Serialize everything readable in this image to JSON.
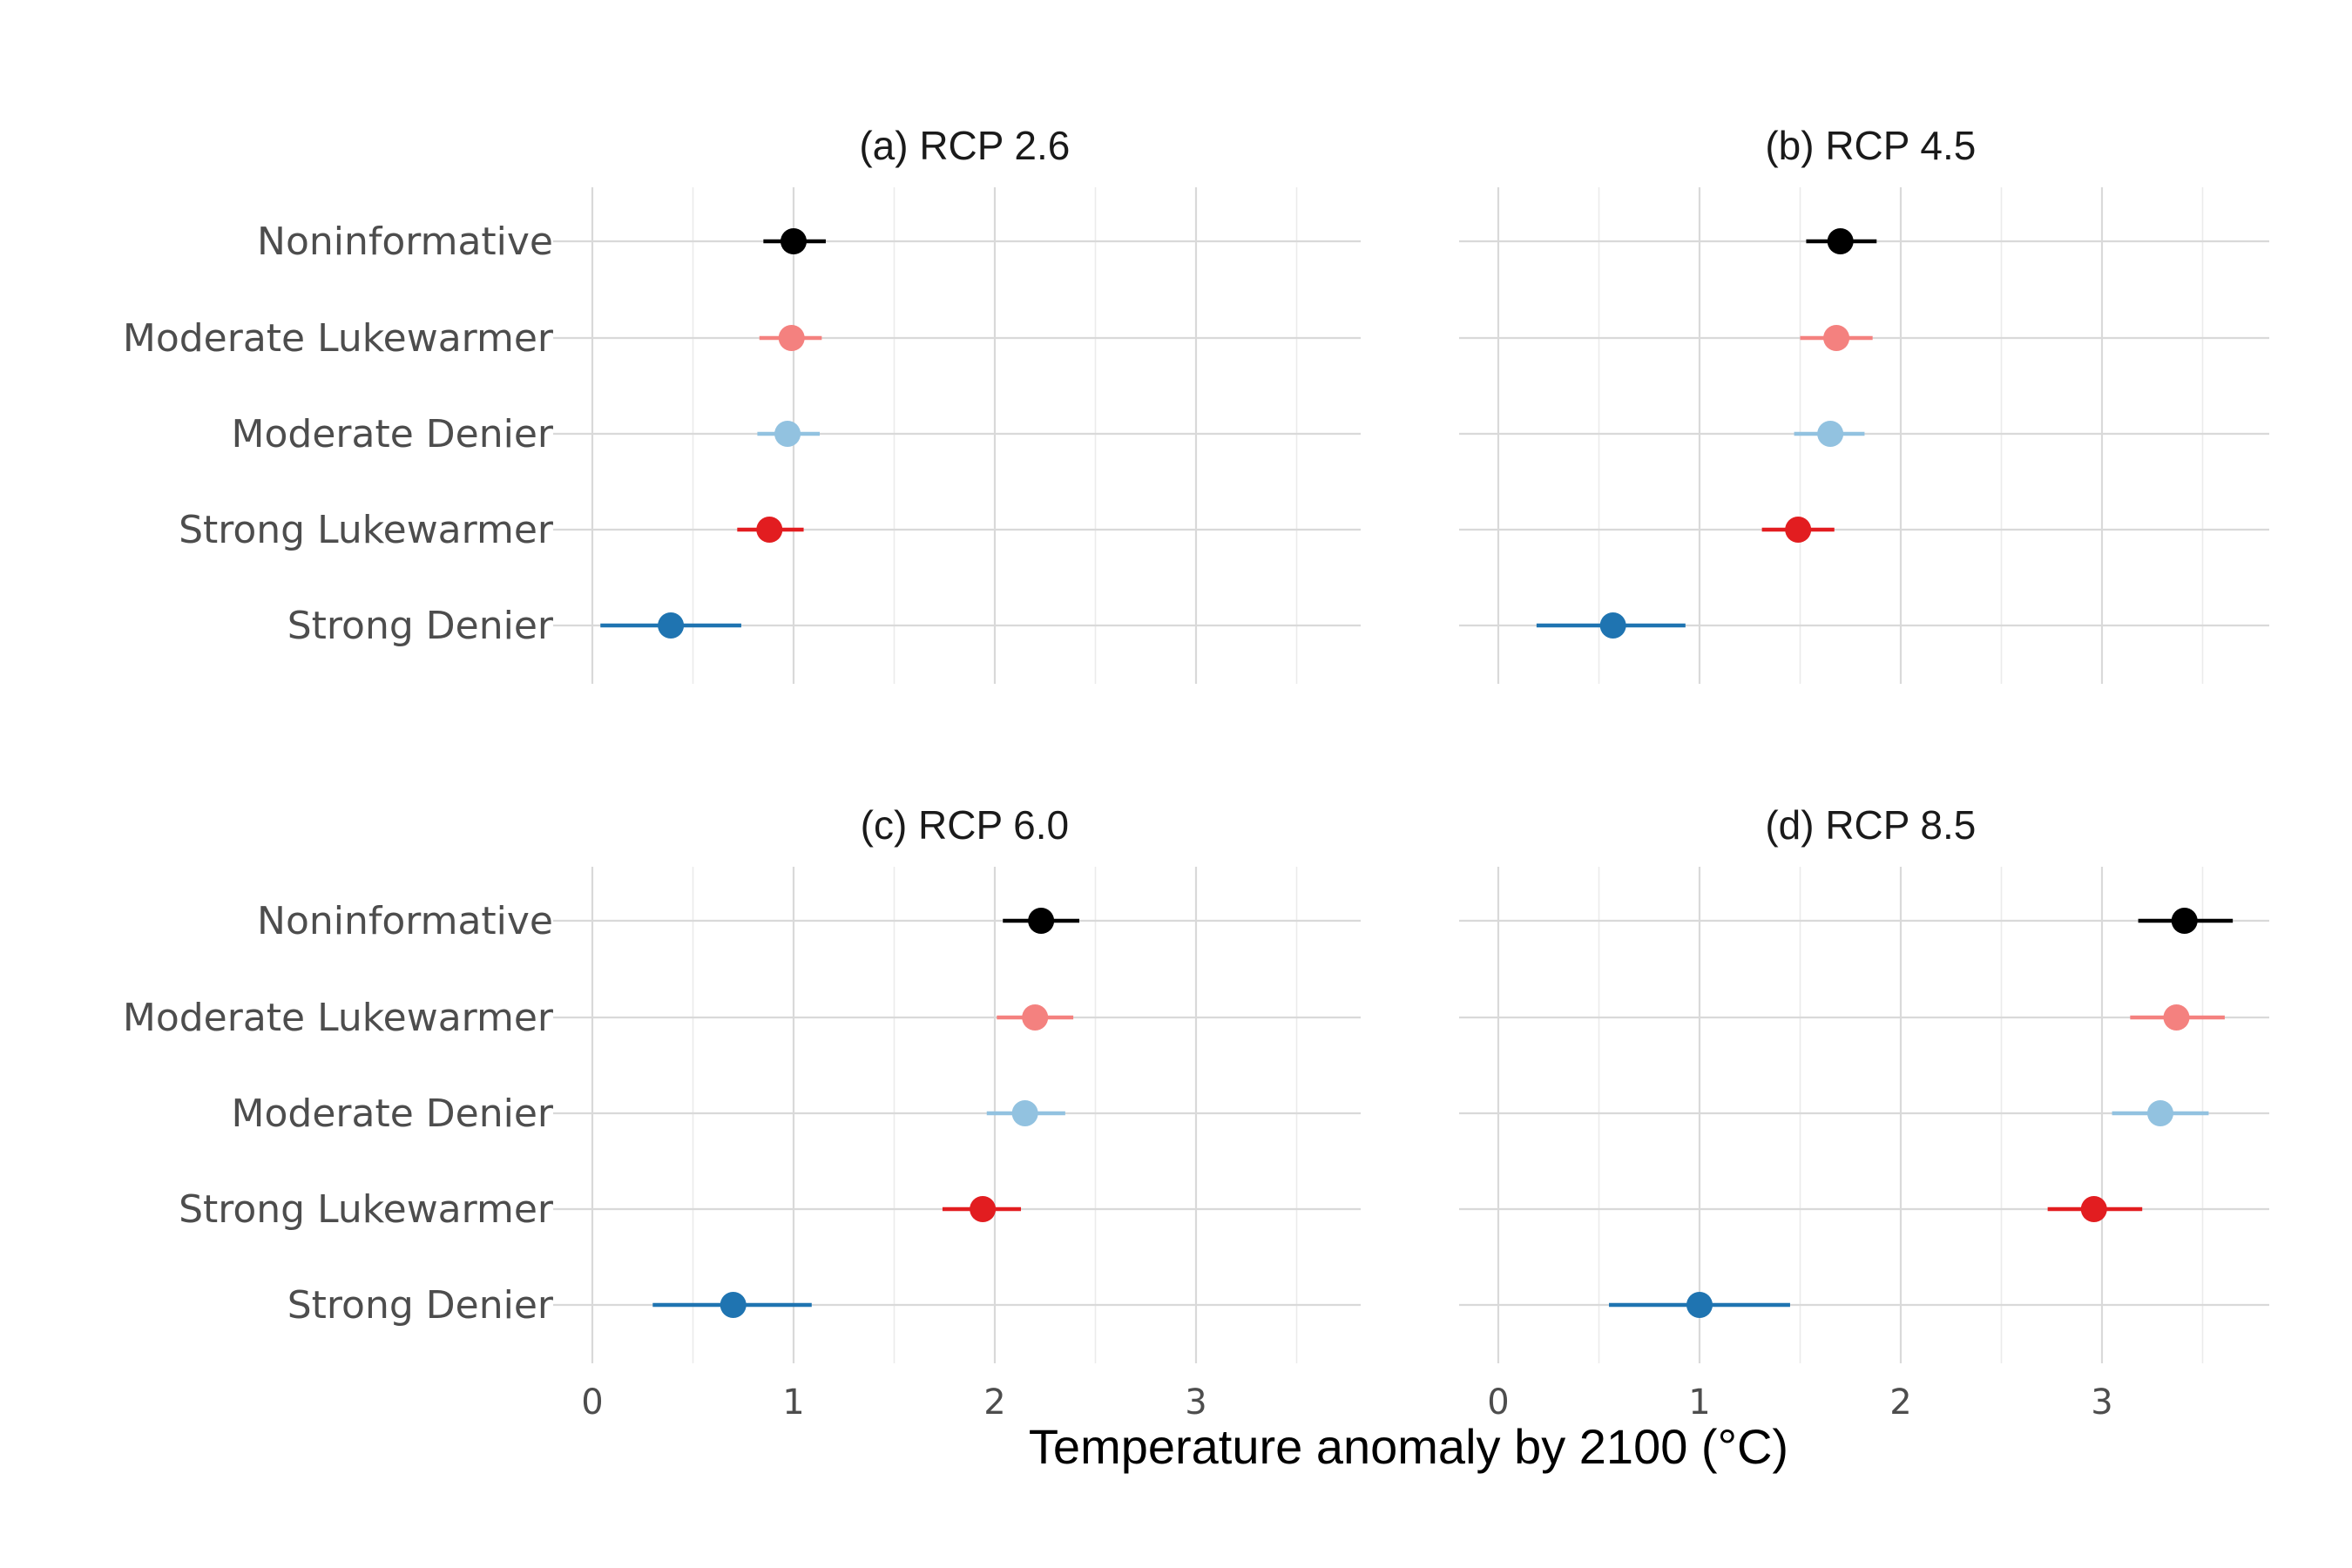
{
  "chart_data": {
    "type": "forest",
    "xlabel": "Temperature anomaly by 2100 (°C)",
    "xlim": [
      -0.1,
      3.85
    ],
    "x_ticks": [
      0,
      1,
      2,
      3
    ],
    "x_tick_labels": [
      "0",
      "1",
      "2",
      "3"
    ],
    "grid": true,
    "categories": [
      "Noninformative",
      "Moderate Lukewarmer",
      "Moderate Denier",
      "Strong Lukewarmer",
      "Strong Denier"
    ],
    "colors": {
      "Noninformative": "#000000",
      "Moderate Lukewarmer": "#f4817f",
      "Moderate Denier": "#92c2e0",
      "Strong Lukewarmer": "#e21d20",
      "Strong Denier": "#1f74b1"
    },
    "panels": [
      {
        "title": "(a) RCP 2.6",
        "points": [
          {
            "category": "Noninformative",
            "estimate": 1.0,
            "low": 0.85,
            "high": 1.16
          },
          {
            "category": "Moderate Lukewarmer",
            "estimate": 0.99,
            "low": 0.83,
            "high": 1.14
          },
          {
            "category": "Moderate Denier",
            "estimate": 0.97,
            "low": 0.82,
            "high": 1.13
          },
          {
            "category": "Strong Lukewarmer",
            "estimate": 0.88,
            "low": 0.72,
            "high": 1.05
          },
          {
            "category": "Strong Denier",
            "estimate": 0.39,
            "low": 0.04,
            "high": 0.74
          }
        ]
      },
      {
        "title": "(b) RCP 4.5",
        "points": [
          {
            "category": "Noninformative",
            "estimate": 1.7,
            "low": 1.53,
            "high": 1.88
          },
          {
            "category": "Moderate Lukewarmer",
            "estimate": 1.68,
            "low": 1.5,
            "high": 1.86
          },
          {
            "category": "Moderate Denier",
            "estimate": 1.65,
            "low": 1.47,
            "high": 1.82
          },
          {
            "category": "Strong Lukewarmer",
            "estimate": 1.49,
            "low": 1.31,
            "high": 1.67
          },
          {
            "category": "Strong Denier",
            "estimate": 0.57,
            "low": 0.19,
            "high": 0.93
          }
        ]
      },
      {
        "title": "(c) RCP 6.0",
        "points": [
          {
            "category": "Noninformative",
            "estimate": 2.23,
            "low": 2.04,
            "high": 2.42
          },
          {
            "category": "Moderate Lukewarmer",
            "estimate": 2.2,
            "low": 2.01,
            "high": 2.39
          },
          {
            "category": "Moderate Denier",
            "estimate": 2.15,
            "low": 1.96,
            "high": 2.35
          },
          {
            "category": "Strong Lukewarmer",
            "estimate": 1.94,
            "low": 1.74,
            "high": 2.13
          },
          {
            "category": "Strong Denier",
            "estimate": 0.7,
            "low": 0.3,
            "high": 1.09
          }
        ]
      },
      {
        "title": "(d) RCP 8.5",
        "points": [
          {
            "category": "Noninformative",
            "estimate": 3.41,
            "low": 3.18,
            "high": 3.65
          },
          {
            "category": "Moderate Lukewarmer",
            "estimate": 3.37,
            "low": 3.14,
            "high": 3.61
          },
          {
            "category": "Moderate Denier",
            "estimate": 3.29,
            "low": 3.05,
            "high": 3.53
          },
          {
            "category": "Strong Lukewarmer",
            "estimate": 2.96,
            "low": 2.73,
            "high": 3.2
          },
          {
            "category": "Strong Denier",
            "estimate": 1.0,
            "low": 0.55,
            "high": 1.45
          }
        ]
      }
    ]
  }
}
